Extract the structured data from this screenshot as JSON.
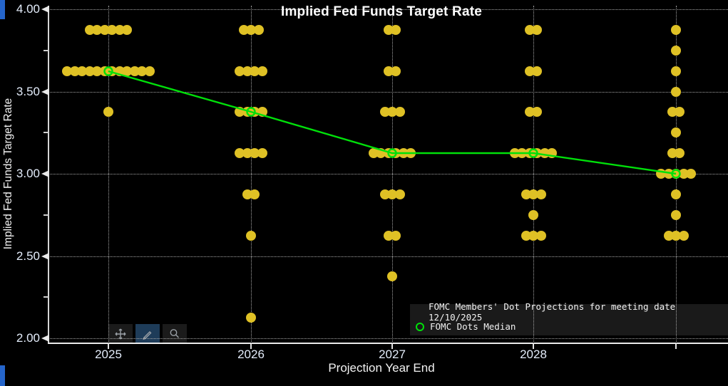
{
  "window": {
    "accent_color": "#2565cb"
  },
  "chart_data": {
    "type": "scatter",
    "title": "Implied Fed Funds Target Rate",
    "xlabel": "Projection Year End",
    "ylabel": "Implied Fed Funds Target Rate",
    "ylim": [
      2.0,
      4.0
    ],
    "grid": "dotted",
    "legend_position": "bottom-right",
    "yticks": [
      {
        "v": 2.0,
        "label": "2.00"
      },
      {
        "v": 2.5,
        "label": "2.50"
      },
      {
        "v": 3.0,
        "label": "3.00"
      },
      {
        "v": 3.5,
        "label": "3.50"
      },
      {
        "v": 4.0,
        "label": "4.00"
      }
    ],
    "yticks_minor": [
      2.25,
      2.75,
      3.25,
      3.75
    ],
    "categories": [
      "2025",
      "2026",
      "2027",
      "2028",
      ""
    ],
    "dot_color": "#dfc125",
    "median_color": "#00e00a",
    "series": [
      {
        "name": "FOMC Members' Dot Projections for meeting date 12/10/2025",
        "columns": [
          {
            "x": "2025",
            "dots": [
              {
                "v": 3.875,
                "n": 6
              },
              {
                "v": 3.625,
                "n": 12
              },
              {
                "v": 3.375,
                "n": 1
              }
            ]
          },
          {
            "x": "2026",
            "dots": [
              {
                "v": 3.875,
                "n": 3
              },
              {
                "v": 3.625,
                "n": 4
              },
              {
                "v": 3.375,
                "n": 4
              },
              {
                "v": 3.125,
                "n": 4
              },
              {
                "v": 2.875,
                "n": 2
              },
              {
                "v": 2.625,
                "n": 1
              },
              {
                "v": 2.125,
                "n": 1
              }
            ]
          },
          {
            "x": "2027",
            "dots": [
              {
                "v": 3.875,
                "n": 2
              },
              {
                "v": 3.625,
                "n": 2
              },
              {
                "v": 3.375,
                "n": 3
              },
              {
                "v": 3.125,
                "n": 6
              },
              {
                "v": 2.875,
                "n": 3
              },
              {
                "v": 2.625,
                "n": 2
              },
              {
                "v": 2.375,
                "n": 1
              }
            ]
          },
          {
            "x": "2028",
            "dots": [
              {
                "v": 3.875,
                "n": 2
              },
              {
                "v": 3.625,
                "n": 2
              },
              {
                "v": 3.375,
                "n": 2
              },
              {
                "v": 3.125,
                "n": 6
              },
              {
                "v": 2.875,
                "n": 3
              },
              {
                "v": 2.75,
                "n": 1
              },
              {
                "v": 2.625,
                "n": 3
              }
            ]
          },
          {
            "x": "",
            "dots": [
              {
                "v": 3.875,
                "n": 1
              },
              {
                "v": 3.75,
                "n": 1
              },
              {
                "v": 3.625,
                "n": 1
              },
              {
                "v": 3.5,
                "n": 1
              },
              {
                "v": 3.375,
                "n": 2
              },
              {
                "v": 3.25,
                "n": 1
              },
              {
                "v": 3.125,
                "n": 2
              },
              {
                "v": 3.0,
                "n": 5
              },
              {
                "v": 2.875,
                "n": 1
              },
              {
                "v": 2.75,
                "n": 1
              },
              {
                "v": 2.625,
                "n": 3
              }
            ]
          }
        ]
      }
    ],
    "medians": {
      "name": "FOMC Dots Median",
      "values": [
        3.625,
        3.375,
        3.125,
        3.125,
        3.0
      ]
    }
  },
  "legend": {
    "items": [
      {
        "label": "FOMC Members' Dot Projections for meeting date 12/10/2025",
        "marker": "dot",
        "color": "#dfc125"
      },
      {
        "label": "FOMC Dots Median",
        "marker": "ring",
        "color": "#00e00a"
      }
    ]
  },
  "toolbar": {
    "buttons": [
      {
        "name": "pan",
        "selected": false
      },
      {
        "name": "draw",
        "selected": true
      },
      {
        "name": "zoom",
        "selected": false
      }
    ]
  }
}
